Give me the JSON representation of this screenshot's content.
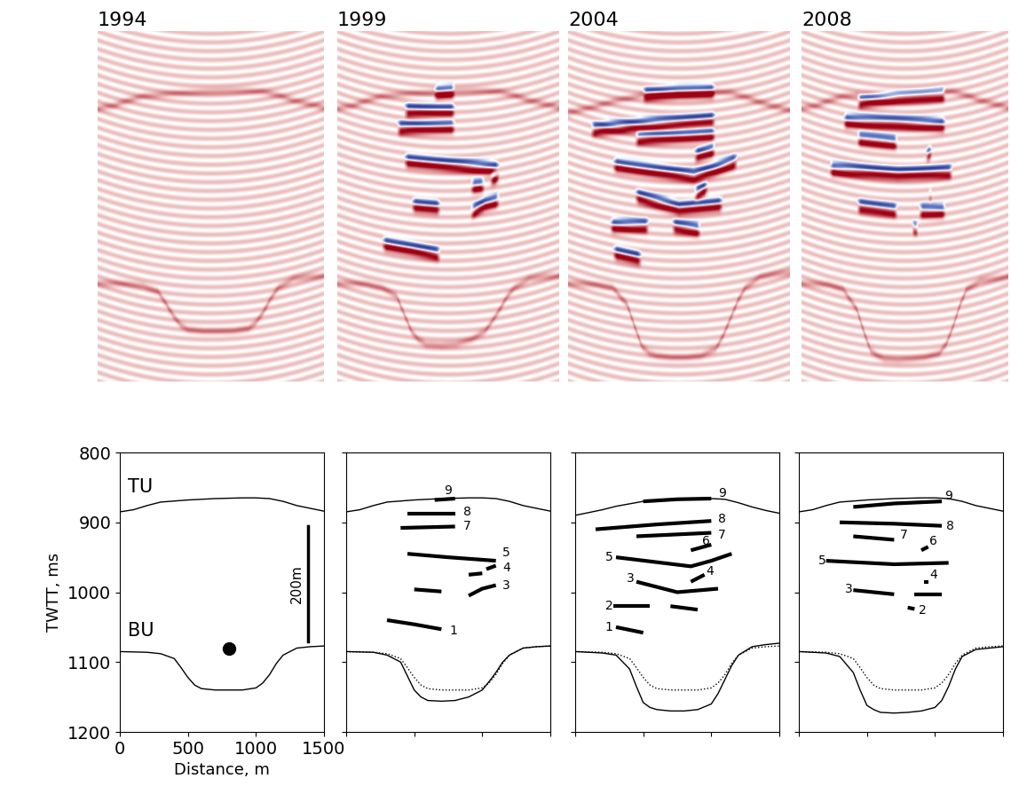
{
  "chart_data": [
    {
      "type": "line",
      "title": "1994",
      "x_label": "Distance, m",
      "y_label": "TWTT, ms",
      "xlim": [
        0,
        1500
      ],
      "ylim": [
        1200,
        800
      ],
      "xticks": [
        0,
        500,
        1000,
        1500
      ],
      "yticks": [
        800,
        900,
        1000,
        1100,
        1200
      ],
      "series": [
        {
          "type": "line",
          "color": "#000000",
          "line_style": "solid",
          "x": [
            0,
            100,
            200,
            300,
            500,
            700,
            900,
            1000,
            1100,
            1200,
            1300,
            1400,
            1500
          ],
          "values": [
            885,
            882,
            876,
            871,
            868,
            866,
            865,
            865,
            866,
            870,
            876,
            880,
            884
          ]
        },
        {
          "type": "line",
          "color": "#000000",
          "line_style": "solid",
          "x": [
            0,
            200,
            300,
            400,
            450,
            500,
            550,
            600,
            700,
            800,
            900,
            1000,
            1050,
            1100,
            1150,
            1200,
            1300,
            1400,
            1500
          ],
          "values": [
            1085,
            1086,
            1088,
            1095,
            1108,
            1122,
            1133,
            1138,
            1140,
            1140,
            1140,
            1137,
            1130,
            1118,
            1102,
            1090,
            1080,
            1078,
            1077
          ]
        },
        {
          "type": "scatter",
          "color": "#000000",
          "marker": "circle",
          "x": [
            800
          ],
          "values": [
            1080
          ]
        },
        {
          "type": "scale_bar",
          "color": "#000000",
          "label": "200m",
          "x": [
            1380,
            1380
          ],
          "values": [
            905,
            1070
          ]
        }
      ],
      "annotations": [
        {
          "text": "TU",
          "x": 60,
          "y": 850
        },
        {
          "text": "BU",
          "x": 60,
          "y": 1055
        }
      ]
    },
    {
      "type": "line",
      "title": "1999",
      "tick_labels": false,
      "xlim": [
        0,
        1500
      ],
      "ylim": [
        1200,
        800
      ],
      "xticks": [
        0,
        500,
        1000,
        1500
      ],
      "yticks": [
        800,
        900,
        1000,
        1100,
        1200
      ],
      "series": [
        {
          "type": "line",
          "color": "#000000",
          "line_style": "solid",
          "x": [
            0,
            100,
            200,
            300,
            500,
            700,
            900,
            1000,
            1100,
            1200,
            1300,
            1400,
            1500
          ],
          "values": [
            885,
            882,
            876,
            871,
            868,
            866,
            865,
            865,
            866,
            870,
            876,
            880,
            884
          ]
        },
        {
          "type": "line",
          "color": "#000000",
          "line_style": "solid",
          "x": [
            0,
            200,
            300,
            400,
            450,
            500,
            550,
            600,
            700,
            800,
            900,
            1000,
            1050,
            1100,
            1150,
            1200,
            1300,
            1400,
            1500
          ],
          "values": [
            1085,
            1086,
            1090,
            1100,
            1120,
            1140,
            1150,
            1155,
            1156,
            1155,
            1150,
            1140,
            1128,
            1115,
            1100,
            1090,
            1080,
            1078,
            1077
          ]
        },
        {
          "type": "line",
          "color": "#000000",
          "line_style": "dotted",
          "x": [
            0,
            200,
            300,
            400,
            450,
            500,
            550,
            600,
            700,
            800,
            900,
            1000,
            1050,
            1100,
            1150,
            1200,
            1300,
            1400,
            1500
          ],
          "values": [
            1085,
            1086,
            1088,
            1095,
            1108,
            1122,
            1133,
            1138,
            1140,
            1140,
            1140,
            1137,
            1130,
            1118,
            1102,
            1090,
            1080,
            1078,
            1077
          ]
        },
        {
          "type": "horizon",
          "color": "#000000",
          "line_style": "solid",
          "x": [
            650,
            800
          ],
          "values": [
            868,
            866
          ]
        },
        {
          "type": "horizon",
          "color": "#000000",
          "line_style": "solid",
          "x": [
            450,
            800
          ],
          "values": [
            888,
            888
          ]
        },
        {
          "type": "horizon",
          "color": "#000000",
          "line_style": "solid",
          "x": [
            400,
            800
          ],
          "values": [
            908,
            906
          ]
        },
        {
          "type": "horizon",
          "color": "#000000",
          "line_style": "solid",
          "x": [
            450,
            750,
            1100
          ],
          "values": [
            945,
            950,
            955
          ]
        },
        {
          "type": "horizon",
          "color": "#000000",
          "line_style": "solid",
          "x": [
            900,
            1000
          ],
          "values": [
            975,
            973
          ]
        },
        {
          "type": "horizon",
          "color": "#000000",
          "line_style": "solid",
          "x": [
            1030,
            1100
          ],
          "values": [
            967,
            962
          ]
        },
        {
          "type": "horizon",
          "color": "#000000",
          "line_style": "solid",
          "x": [
            500,
            700
          ],
          "values": [
            996,
            999
          ]
        },
        {
          "type": "horizon",
          "color": "#000000",
          "line_style": "solid",
          "x": [
            900,
            1000,
            1100
          ],
          "values": [
            1005,
            995,
            990
          ]
        },
        {
          "type": "horizon",
          "color": "#000000",
          "line_style": "solid",
          "x": [
            300,
            500,
            700
          ],
          "values": [
            1040,
            1046,
            1053
          ]
        }
      ],
      "annotations": [
        {
          "text": "9",
          "x": 720,
          "y": 855
        },
        {
          "text": "8",
          "x": 860,
          "y": 885
        },
        {
          "text": "7",
          "x": 860,
          "y": 905
        },
        {
          "text": "5",
          "x": 1150,
          "y": 943
        },
        {
          "text": "4",
          "x": 1150,
          "y": 965
        },
        {
          "text": "3",
          "x": 1150,
          "y": 990
        },
        {
          "text": "1",
          "x": 760,
          "y": 1055
        }
      ]
    },
    {
      "type": "line",
      "title": "2004",
      "tick_labels": false,
      "xlim": [
        0,
        1500
      ],
      "ylim": [
        1200,
        800
      ],
      "xticks": [
        0,
        500,
        1000,
        1500
      ],
      "yticks": [
        800,
        900,
        1000,
        1100,
        1200
      ],
      "series": [
        {
          "type": "line",
          "color": "#000000",
          "line_style": "solid",
          "x": [
            0,
            100,
            200,
            300,
            500,
            700,
            900,
            1000,
            1100,
            1200,
            1300,
            1400,
            1500
          ],
          "values": [
            890,
            886,
            882,
            877,
            870,
            867,
            866,
            866,
            867,
            872,
            878,
            883,
            887
          ]
        },
        {
          "type": "line",
          "color": "#000000",
          "line_style": "solid",
          "x": [
            0,
            200,
            300,
            400,
            450,
            500,
            550,
            600,
            700,
            800,
            900,
            1000,
            1050,
            1100,
            1150,
            1200,
            1300,
            1400,
            1500
          ],
          "values": [
            1085,
            1087,
            1090,
            1110,
            1135,
            1158,
            1165,
            1168,
            1170,
            1170,
            1168,
            1160,
            1145,
            1125,
            1105,
            1090,
            1078,
            1075,
            1073
          ]
        },
        {
          "type": "line",
          "color": "#000000",
          "line_style": "dotted",
          "x": [
            0,
            200,
            300,
            400,
            450,
            500,
            550,
            600,
            700,
            800,
            900,
            1000,
            1050,
            1100,
            1150,
            1200,
            1300,
            1400,
            1500
          ],
          "values": [
            1085,
            1086,
            1088,
            1095,
            1108,
            1122,
            1133,
            1138,
            1140,
            1140,
            1140,
            1137,
            1130,
            1118,
            1102,
            1090,
            1080,
            1078,
            1077
          ]
        },
        {
          "type": "horizon",
          "color": "#000000",
          "line_style": "solid",
          "x": [
            500,
            750,
            1000
          ],
          "values": [
            870,
            867,
            866
          ]
        },
        {
          "type": "horizon",
          "color": "#000000",
          "line_style": "solid",
          "x": [
            150,
            600,
            1000
          ],
          "values": [
            910,
            903,
            898
          ]
        },
        {
          "type": "horizon",
          "color": "#000000",
          "line_style": "solid",
          "x": [
            450,
            1000
          ],
          "values": [
            920,
            915
          ]
        },
        {
          "type": "horizon",
          "color": "#000000",
          "line_style": "solid",
          "x": [
            850,
            1000
          ],
          "values": [
            940,
            932
          ]
        },
        {
          "type": "horizon",
          "color": "#000000",
          "line_style": "solid",
          "x": [
            300,
            850,
            1000,
            1150
          ],
          "values": [
            950,
            963,
            955,
            945
          ]
        },
        {
          "type": "horizon",
          "color": "#000000",
          "line_style": "solid",
          "x": [
            850,
            950
          ],
          "values": [
            985,
            975
          ]
        },
        {
          "type": "horizon",
          "color": "#000000",
          "line_style": "solid",
          "x": [
            450,
            750,
            1050
          ],
          "values": [
            985,
            1000,
            995
          ]
        },
        {
          "type": "horizon",
          "color": "#000000",
          "line_style": "solid",
          "x": [
            280,
            550
          ],
          "values": [
            1020,
            1020
          ]
        },
        {
          "type": "horizon",
          "color": "#000000",
          "line_style": "solid",
          "x": [
            700,
            900
          ],
          "values": [
            1020,
            1025
          ]
        },
        {
          "type": "horizon",
          "color": "#000000",
          "line_style": "solid",
          "x": [
            300,
            500
          ],
          "values": [
            1050,
            1058
          ]
        }
      ],
      "annotations": [
        {
          "text": "9",
          "x": 1050,
          "y": 858
        },
        {
          "text": "8",
          "x": 1050,
          "y": 895
        },
        {
          "text": "7",
          "x": 1050,
          "y": 918
        },
        {
          "text": "6",
          "x": 930,
          "y": 927
        },
        {
          "text": "5",
          "x": 220,
          "y": 950
        },
        {
          "text": "4",
          "x": 960,
          "y": 970
        },
        {
          "text": "3",
          "x": 380,
          "y": 980
        },
        {
          "text": "2",
          "x": 220,
          "y": 1020
        },
        {
          "text": "1",
          "x": 220,
          "y": 1050
        }
      ]
    },
    {
      "type": "line",
      "title": "2008",
      "tick_labels": false,
      "xlim": [
        0,
        1500
      ],
      "ylim": [
        1200,
        800
      ],
      "xticks": [
        0,
        500,
        1000,
        1500
      ],
      "yticks": [
        800,
        900,
        1000,
        1100,
        1200
      ],
      "series": [
        {
          "type": "line",
          "color": "#000000",
          "line_style": "solid",
          "x": [
            0,
            100,
            200,
            300,
            500,
            700,
            900,
            1000,
            1100,
            1200,
            1300,
            1400,
            1500
          ],
          "values": [
            885,
            882,
            876,
            871,
            868,
            866,
            865,
            865,
            866,
            870,
            876,
            880,
            884
          ]
        },
        {
          "type": "line",
          "color": "#000000",
          "line_style": "solid",
          "x": [
            0,
            200,
            300,
            400,
            450,
            500,
            550,
            600,
            700,
            800,
            900,
            1000,
            1050,
            1100,
            1150,
            1200,
            1300,
            1400,
            1500
          ],
          "values": [
            1085,
            1087,
            1092,
            1115,
            1140,
            1162,
            1168,
            1172,
            1173,
            1172,
            1170,
            1165,
            1155,
            1135,
            1110,
            1092,
            1082,
            1080,
            1078
          ]
        },
        {
          "type": "line",
          "color": "#000000",
          "line_style": "dotted",
          "x": [
            0,
            200,
            300,
            400,
            450,
            500,
            550,
            600,
            700,
            800,
            900,
            1000,
            1050,
            1100,
            1150,
            1200,
            1300,
            1400,
            1500
          ],
          "values": [
            1085,
            1086,
            1088,
            1095,
            1108,
            1122,
            1133,
            1138,
            1140,
            1140,
            1140,
            1137,
            1130,
            1118,
            1102,
            1090,
            1080,
            1078,
            1077
          ]
        },
        {
          "type": "horizon",
          "color": "#000000",
          "line_style": "solid",
          "x": [
            400,
            700,
            1050
          ],
          "values": [
            878,
            873,
            870
          ]
        },
        {
          "type": "horizon",
          "color": "#000000",
          "line_style": "solid",
          "x": [
            300,
            700,
            1050
          ],
          "values": [
            900,
            902,
            905
          ]
        },
        {
          "type": "horizon",
          "color": "#000000",
          "line_style": "solid",
          "x": [
            400,
            700
          ],
          "values": [
            920,
            925
          ]
        },
        {
          "type": "horizon",
          "color": "#000000",
          "line_style": "solid",
          "x": [
            900,
            950
          ],
          "values": [
            940,
            935
          ]
        },
        {
          "type": "horizon",
          "color": "#000000",
          "line_style": "solid",
          "x": [
            200,
            700,
            1100
          ],
          "values": [
            955,
            960,
            958
          ]
        },
        {
          "type": "horizon",
          "color": "#000000",
          "line_style": "solid",
          "x": [
            920,
            950
          ],
          "values": [
            985,
            985
          ]
        },
        {
          "type": "horizon",
          "color": "#000000",
          "line_style": "solid",
          "x": [
            400,
            700
          ],
          "values": [
            997,
            1003
          ]
        },
        {
          "type": "horizon",
          "color": "#000000",
          "line_style": "solid",
          "x": [
            850,
            1050
          ],
          "values": [
            1003,
            1003
          ]
        },
        {
          "type": "horizon",
          "color": "#000000",
          "line_style": "solid",
          "x": [
            800,
            850
          ],
          "values": [
            1022,
            1024
          ]
        }
      ],
      "annotations": [
        {
          "text": "9",
          "x": 1070,
          "y": 862
        },
        {
          "text": "8",
          "x": 1080,
          "y": 905
        },
        {
          "text": "7",
          "x": 740,
          "y": 918
        },
        {
          "text": "6",
          "x": 960,
          "y": 927
        },
        {
          "text": "5",
          "x": 140,
          "y": 955
        },
        {
          "text": "4",
          "x": 960,
          "y": 975
        },
        {
          "text": "3",
          "x": 340,
          "y": 995
        },
        {
          "text": "2",
          "x": 880,
          "y": 1026
        }
      ]
    }
  ]
}
